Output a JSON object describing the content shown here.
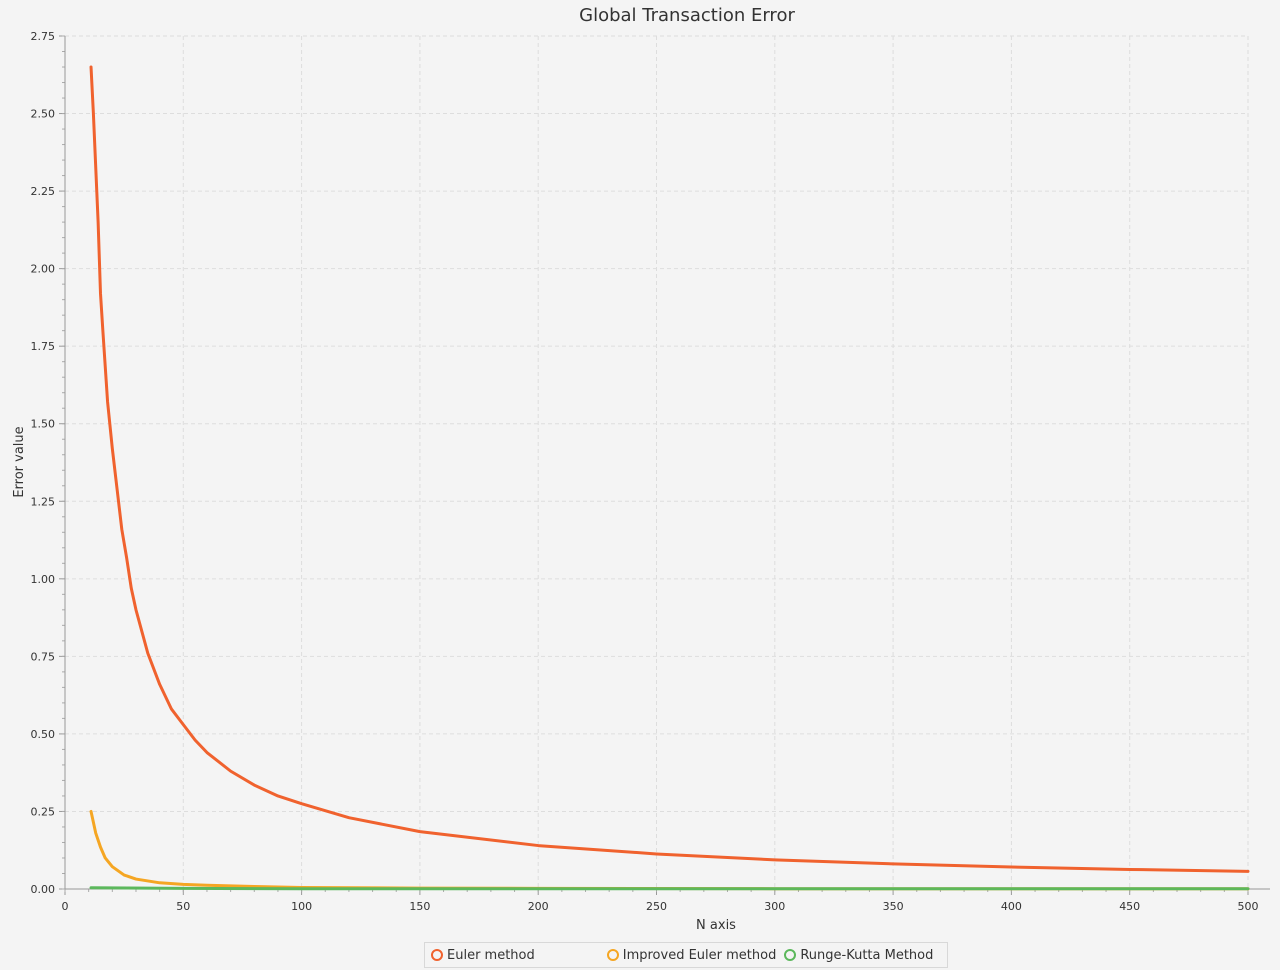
{
  "chart_data": {
    "type": "line",
    "title": "Global Transaction Error",
    "xlabel": "N axis",
    "ylabel": "Error value",
    "xlim": [
      0,
      500
    ],
    "ylim": [
      0,
      2.75
    ],
    "x_ticks": [
      "0",
      "50",
      "100",
      "150",
      "200",
      "250",
      "300",
      "350",
      "400",
      "450",
      "500"
    ],
    "y_ticks": [
      "0.00",
      "0.25",
      "0.50",
      "0.75",
      "1.00",
      "1.25",
      "1.50",
      "1.75",
      "2.00",
      "2.25",
      "2.50",
      "2.75"
    ],
    "grid": true,
    "legend_position": "bottom-center",
    "series": [
      {
        "name": "Euler method",
        "color": "#f0622e",
        "x": [
          11,
          12,
          14,
          15,
          16,
          18,
          20,
          22,
          24,
          26,
          28,
          30,
          35,
          40,
          45,
          50,
          55,
          60,
          70,
          80,
          90,
          100,
          120,
          150,
          200,
          250,
          300,
          350,
          400,
          450,
          500
        ],
        "y": [
          2.65,
          2.5,
          2.15,
          1.92,
          1.8,
          1.57,
          1.42,
          1.29,
          1.16,
          1.07,
          0.97,
          0.9,
          0.76,
          0.66,
          0.58,
          0.53,
          0.48,
          0.44,
          0.38,
          0.335,
          0.3,
          0.275,
          0.23,
          0.185,
          0.14,
          0.113,
          0.094,
          0.081,
          0.071,
          0.063,
          0.057
        ]
      },
      {
        "name": "Improved Euler method",
        "color": "#f5a623",
        "x": [
          11,
          13,
          15,
          17,
          20,
          25,
          30,
          40,
          50,
          60,
          80,
          100,
          150,
          200,
          300,
          400,
          500
        ],
        "y": [
          0.25,
          0.18,
          0.135,
          0.1,
          0.072,
          0.045,
          0.032,
          0.02,
          0.015,
          0.012,
          0.008,
          0.005,
          0.003,
          0.002,
          0.001,
          0.0008,
          0.0006
        ]
      },
      {
        "name": "Runge-Kutta Method",
        "color": "#5cb85c",
        "x": [
          11,
          50,
          100,
          200,
          300,
          400,
          500
        ],
        "y": [
          0.004,
          0.002,
          0.001,
          0.001,
          0.001,
          0.001,
          0.001
        ]
      }
    ]
  }
}
